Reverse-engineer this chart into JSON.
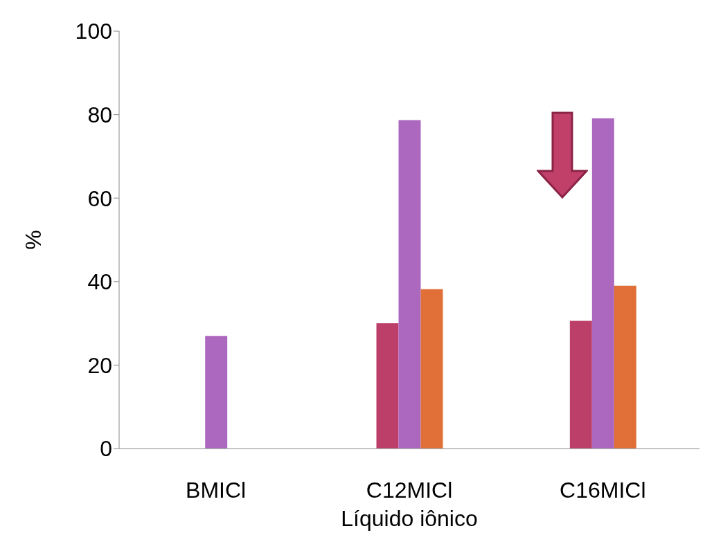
{
  "chart_data": {
    "type": "bar",
    "categories": [
      "BMICl",
      "C12MICl",
      "C16MICl"
    ],
    "series": [
      {
        "color": "#bc3f6a",
        "values": [
          null,
          30,
          30.6
        ]
      },
      {
        "color": "#ac68bf",
        "values": [
          27,
          78.7,
          79.1
        ]
      },
      {
        "color": "#e07038",
        "values": [
          null,
          38.2,
          39
        ]
      }
    ],
    "xlabel": "Líquido iônico",
    "ylabel": "%",
    "ylim": [
      0,
      100
    ],
    "yticks": [
      0,
      20,
      40,
      60,
      80,
      100
    ],
    "grid": false
  }
}
